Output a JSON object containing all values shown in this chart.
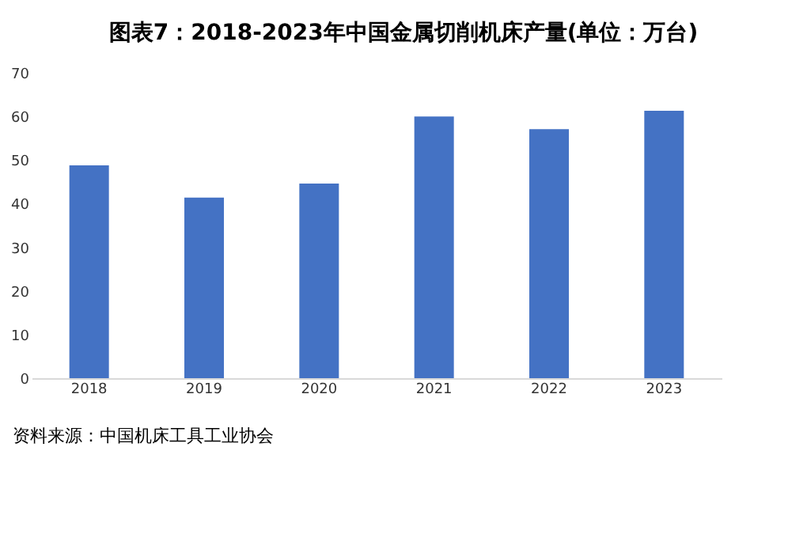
{
  "chart_data": {
    "type": "bar",
    "title": "图表7：2018-2023年中国金属切削机床产量(单位：万台)",
    "categories": [
      "2018",
      "2019",
      "2020",
      "2021",
      "2022",
      "2023"
    ],
    "values": [
      48.8,
      41.4,
      44.6,
      60.0,
      57.1,
      61.3
    ],
    "color": "#4472c4",
    "ylim": [
      0,
      70
    ],
    "yticks": [
      0,
      10,
      20,
      30,
      40,
      50,
      60,
      70
    ],
    "grid": false,
    "annotations": [
      "资料来源：中国机床工具工业协会"
    ]
  }
}
